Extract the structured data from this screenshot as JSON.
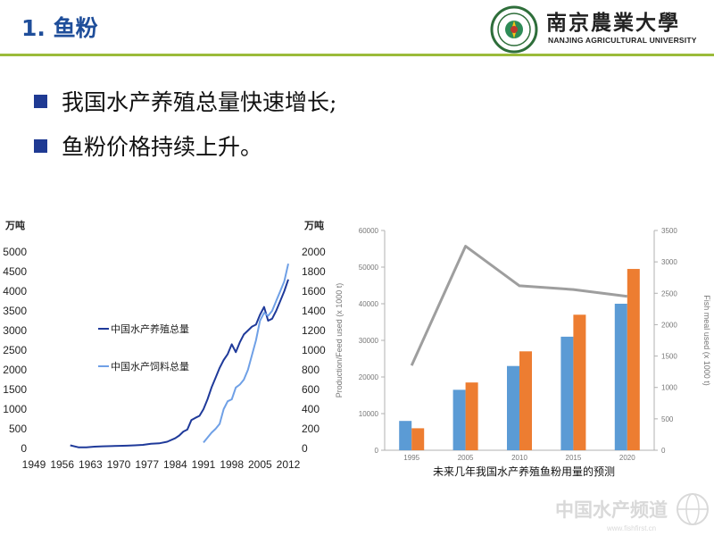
{
  "header": {
    "title": "1. 鱼粉",
    "university_cn": "南京農業大學",
    "university_en": "NANJING AGRICULTURAL UNIVERSITY",
    "rule_color": "#9bbb3a",
    "title_color": "#1f4e9a"
  },
  "bullets": [
    {
      "text": "我国水产养殖总量快速增长;"
    },
    {
      "text": "鱼粉价格持续上升。"
    }
  ],
  "chart_data": [
    {
      "type": "line",
      "left_axis_unit": "万吨",
      "right_axis_unit": "万吨",
      "x_ticks": [
        "1949",
        "1956",
        "1963",
        "1970",
        "1977",
        "1984",
        "1991",
        "1998",
        "2005",
        "2012"
      ],
      "left_ylim": [
        0,
        5000
      ],
      "left_yticks": [
        0,
        500,
        1000,
        1500,
        2000,
        2500,
        3000,
        3500,
        4000,
        4500,
        5000
      ],
      "right_ylim": [
        0,
        2000
      ],
      "right_yticks": [
        0,
        200,
        400,
        600,
        800,
        1000,
        1200,
        1400,
        1600,
        1800,
        2000
      ],
      "legend_position": "center-left",
      "series": [
        {
          "name": "中国水产养殖总量",
          "axis": "left",
          "color": "#1f3a9a",
          "x": [
            1958,
            1960,
            1962,
            1964,
            1966,
            1968,
            1970,
            1972,
            1974,
            1976,
            1978,
            1980,
            1982,
            1984,
            1985,
            1986,
            1987,
            1988,
            1989,
            1990,
            1991,
            1992,
            1993,
            1994,
            1995,
            1996,
            1997,
            1998,
            1999,
            2000,
            2001,
            2002,
            2003,
            2004,
            2005,
            2006,
            2007,
            2008,
            2009,
            2010,
            2011,
            2012
          ],
          "y": [
            80,
            30,
            30,
            45,
            55,
            60,
            65,
            70,
            80,
            90,
            120,
            130,
            170,
            260,
            330,
            430,
            480,
            720,
            780,
            830,
            1000,
            1250,
            1550,
            1800,
            2050,
            2250,
            2400,
            2650,
            2450,
            2700,
            2900,
            3000,
            3100,
            3150,
            3400,
            3600,
            3250,
            3300,
            3500,
            3750,
            4000,
            4300
          ]
        },
        {
          "name": "中国水产饲料总量",
          "axis": "right",
          "color": "#6fa0e6",
          "x": [
            1991,
            1992,
            1993,
            1994,
            1995,
            1996,
            1997,
            1998,
            1999,
            2000,
            2001,
            2002,
            2003,
            2004,
            2005,
            2006,
            2007,
            2008,
            2009,
            2010,
            2011,
            2012
          ],
          "y": [
            60,
            110,
            160,
            200,
            250,
            400,
            480,
            500,
            620,
            650,
            700,
            800,
            950,
            1100,
            1300,
            1380,
            1350,
            1400,
            1500,
            1600,
            1700,
            1880
          ]
        }
      ]
    },
    {
      "type": "bar",
      "categories": [
        "1995",
        "2005",
        "2010",
        "2015",
        "2020"
      ],
      "ylabel": "Production/Feed used (x 1000 t)",
      "ylim": [
        0,
        60000
      ],
      "yticks": [
        0,
        10000,
        20000,
        30000,
        40000,
        50000,
        60000
      ],
      "y2label": "Fish meal used (x 1000 t)",
      "y2lim": [
        0,
        3500
      ],
      "y2ticks": [
        0,
        500,
        1000,
        1500,
        2000,
        2500,
        3000,
        3500
      ],
      "caption": "未来几年我国水产养殖鱼粉用量的预测",
      "series": [
        {
          "type": "bar",
          "axis": "left",
          "color": "#5b9bd5",
          "values": [
            8000,
            16500,
            23000,
            31000,
            40000
          ]
        },
        {
          "type": "bar",
          "axis": "left",
          "color": "#ed7d31",
          "values": [
            6000,
            18500,
            27000,
            37000,
            49500
          ]
        },
        {
          "type": "line",
          "axis": "right",
          "color": "#9e9e9e",
          "values": [
            1350,
            3250,
            2620,
            2560,
            2450
          ]
        }
      ]
    }
  ],
  "footer": {
    "watermark_cn": "中国水产频道",
    "watermark_en": "www.fishfirst.cn"
  }
}
